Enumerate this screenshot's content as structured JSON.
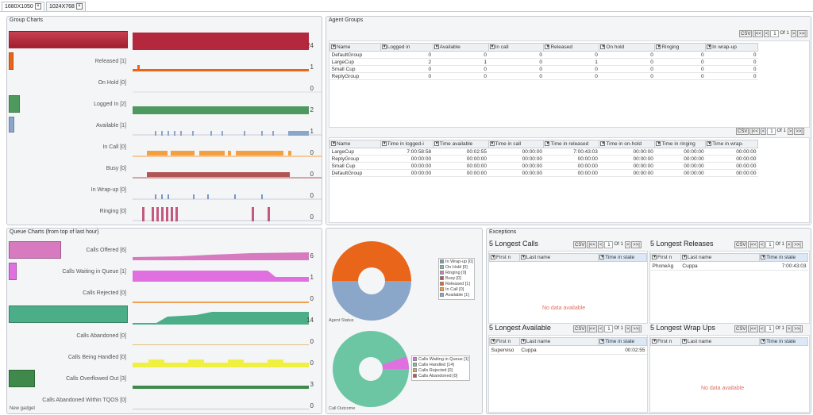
{
  "tabs": [
    {
      "label": "1680X1050"
    },
    {
      "label": "1024X768"
    }
  ],
  "close_glyph": "×",
  "colors": {
    "not_logged_in": "#b3283c",
    "released": "#e8651a",
    "logged_in": "#4e9a5e",
    "available": "#8aa6c8",
    "in_call": "#f5a040",
    "busy": "#b25555",
    "wrapup": "#7a96c2",
    "ringing": "#c5587e",
    "calls_offered": "#d77ac0",
    "waiting": "#e070e0",
    "handled": "#4cae88",
    "being_handled": "#f0f040",
    "overflowed": "#3f8a4a",
    "rejected": "#f0a050",
    "pie_orange": "#e8651a",
    "pie_blue": "#8aa6c8",
    "pie_green": "#6cc6a4",
    "pie_magenta": "#e070e0"
  },
  "group_charts": {
    "title": "Group Charts",
    "rows": [
      {
        "label": "Not Logged In [24]",
        "value": "24"
      },
      {
        "label": "Released [1]",
        "value": "1"
      },
      {
        "label": "On Hold [0]",
        "value": "0"
      },
      {
        "label": "Logged In [2]",
        "value": "2"
      },
      {
        "label": "Available [1]",
        "value": "1"
      },
      {
        "label": "In Call [0]",
        "value": "0"
      },
      {
        "label": "Busy [0]",
        "value": "0"
      },
      {
        "label": "In Wrap-up [0]",
        "value": "0"
      },
      {
        "label": "Ringing [0]",
        "value": "0"
      }
    ]
  },
  "queue_charts": {
    "title": "Queue Charts (from top of last hour)",
    "rows": [
      {
        "label": "Calls Offered [6]",
        "value": "6"
      },
      {
        "label": "Calls Waiting in Queue [1]",
        "value": "1"
      },
      {
        "label": "Calls Rejected [0]",
        "value": "0"
      },
      {
        "label": "Calls Handled [14]",
        "value": "14"
      },
      {
        "label": "Calls Abandoned [0]",
        "value": "0"
      },
      {
        "label": "Calls Being Handled [0]",
        "value": "0"
      },
      {
        "label": "Calls Overflowed Out [3]",
        "value": "3"
      },
      {
        "label": "Calls Abandoned Within TQOS [0]",
        "value": "0"
      }
    ],
    "footer": "New gadget"
  },
  "agent_groups": {
    "title": "Agent Groups",
    "pager": {
      "csv": "CSV",
      "first": "|<<",
      "prev": "<",
      "page": "1",
      "of": "Of 1",
      "next": ">",
      "last": ">>|"
    },
    "table1": {
      "columns": [
        "Name",
        "Logged in",
        "Available",
        "In call",
        "Released",
        "On hold",
        "Ringing",
        "In wrap-up"
      ],
      "rows": [
        [
          "DefaultGroup",
          "0",
          "0",
          "0",
          "0",
          "0",
          "0",
          "0"
        ],
        [
          "LargeCup",
          "2",
          "1",
          "0",
          "1",
          "0",
          "0",
          "0"
        ],
        [
          "Small Cup",
          "0",
          "0",
          "0",
          "0",
          "0",
          "0",
          "0"
        ],
        [
          "ReplyGroup",
          "0",
          "0",
          "0",
          "0",
          "0",
          "0",
          "0"
        ]
      ]
    },
    "table2": {
      "columns": [
        "Name",
        "Time in logged-i",
        "Time available",
        "Time in call",
        "Time in released",
        "Time in on-hold",
        "Time in ringing",
        "Time in wrap-"
      ],
      "rows": [
        [
          "LargeCup",
          "7:00:58:58",
          "00:02:55",
          "00:00:00",
          "7:00:43:03",
          "00:00:00",
          "00:00:00",
          "00:00:00"
        ],
        [
          "ReplyGroup",
          "00:00:00",
          "00:00:00",
          "00:00:00",
          "00:00:00",
          "00:00:00",
          "00:00:00",
          "00:00:00"
        ],
        [
          "Small Cup",
          "00:00:00",
          "00:00:00",
          "00:00:00",
          "00:00:00",
          "00:00:00",
          "00:00:00",
          "00:00:00"
        ],
        [
          "DefaultGroup",
          "00:00:00",
          "00:00:00",
          "00:00:00",
          "00:00:00",
          "00:00:00",
          "00:00:00",
          "00:00:00"
        ]
      ]
    }
  },
  "agent_status": {
    "caption": "Agent Status",
    "legend": [
      "In Wrap-up [0]",
      "On Hold [0]",
      "Ringing [0]",
      "Busy [0]",
      "Released [1]",
      "In Call [0]",
      "Available [1]"
    ]
  },
  "call_outcome": {
    "caption": "Call Outcome",
    "legend": [
      "Calls Waiting in Queue [1]",
      "Calls Handled [14]",
      "Calls Rejected [0]",
      "Calls Abandoned [0]"
    ]
  },
  "exceptions": {
    "title": "Exceptions",
    "no_data": "No data available",
    "longest_calls": {
      "title": "5 Longest Calls",
      "columns": [
        "First n",
        "Last name",
        "Time in state"
      ]
    },
    "longest_releases": {
      "title": "5 Longest Releases",
      "columns": [
        "First n",
        "Last name",
        "Time in state"
      ],
      "rows": [
        [
          "PhoneAg",
          "Cuppa",
          "7:00:43:03"
        ]
      ]
    },
    "longest_available": {
      "title": "5 Longest Available",
      "columns": [
        "First n",
        "Last name",
        "Time in state"
      ],
      "rows": [
        [
          "Superviso",
          "Cuppa",
          "00:02:55"
        ]
      ]
    },
    "longest_wrapups": {
      "title": "5 Longest Wrap Ups",
      "columns": [
        "First n",
        "Last name",
        "Time in state"
      ]
    }
  }
}
